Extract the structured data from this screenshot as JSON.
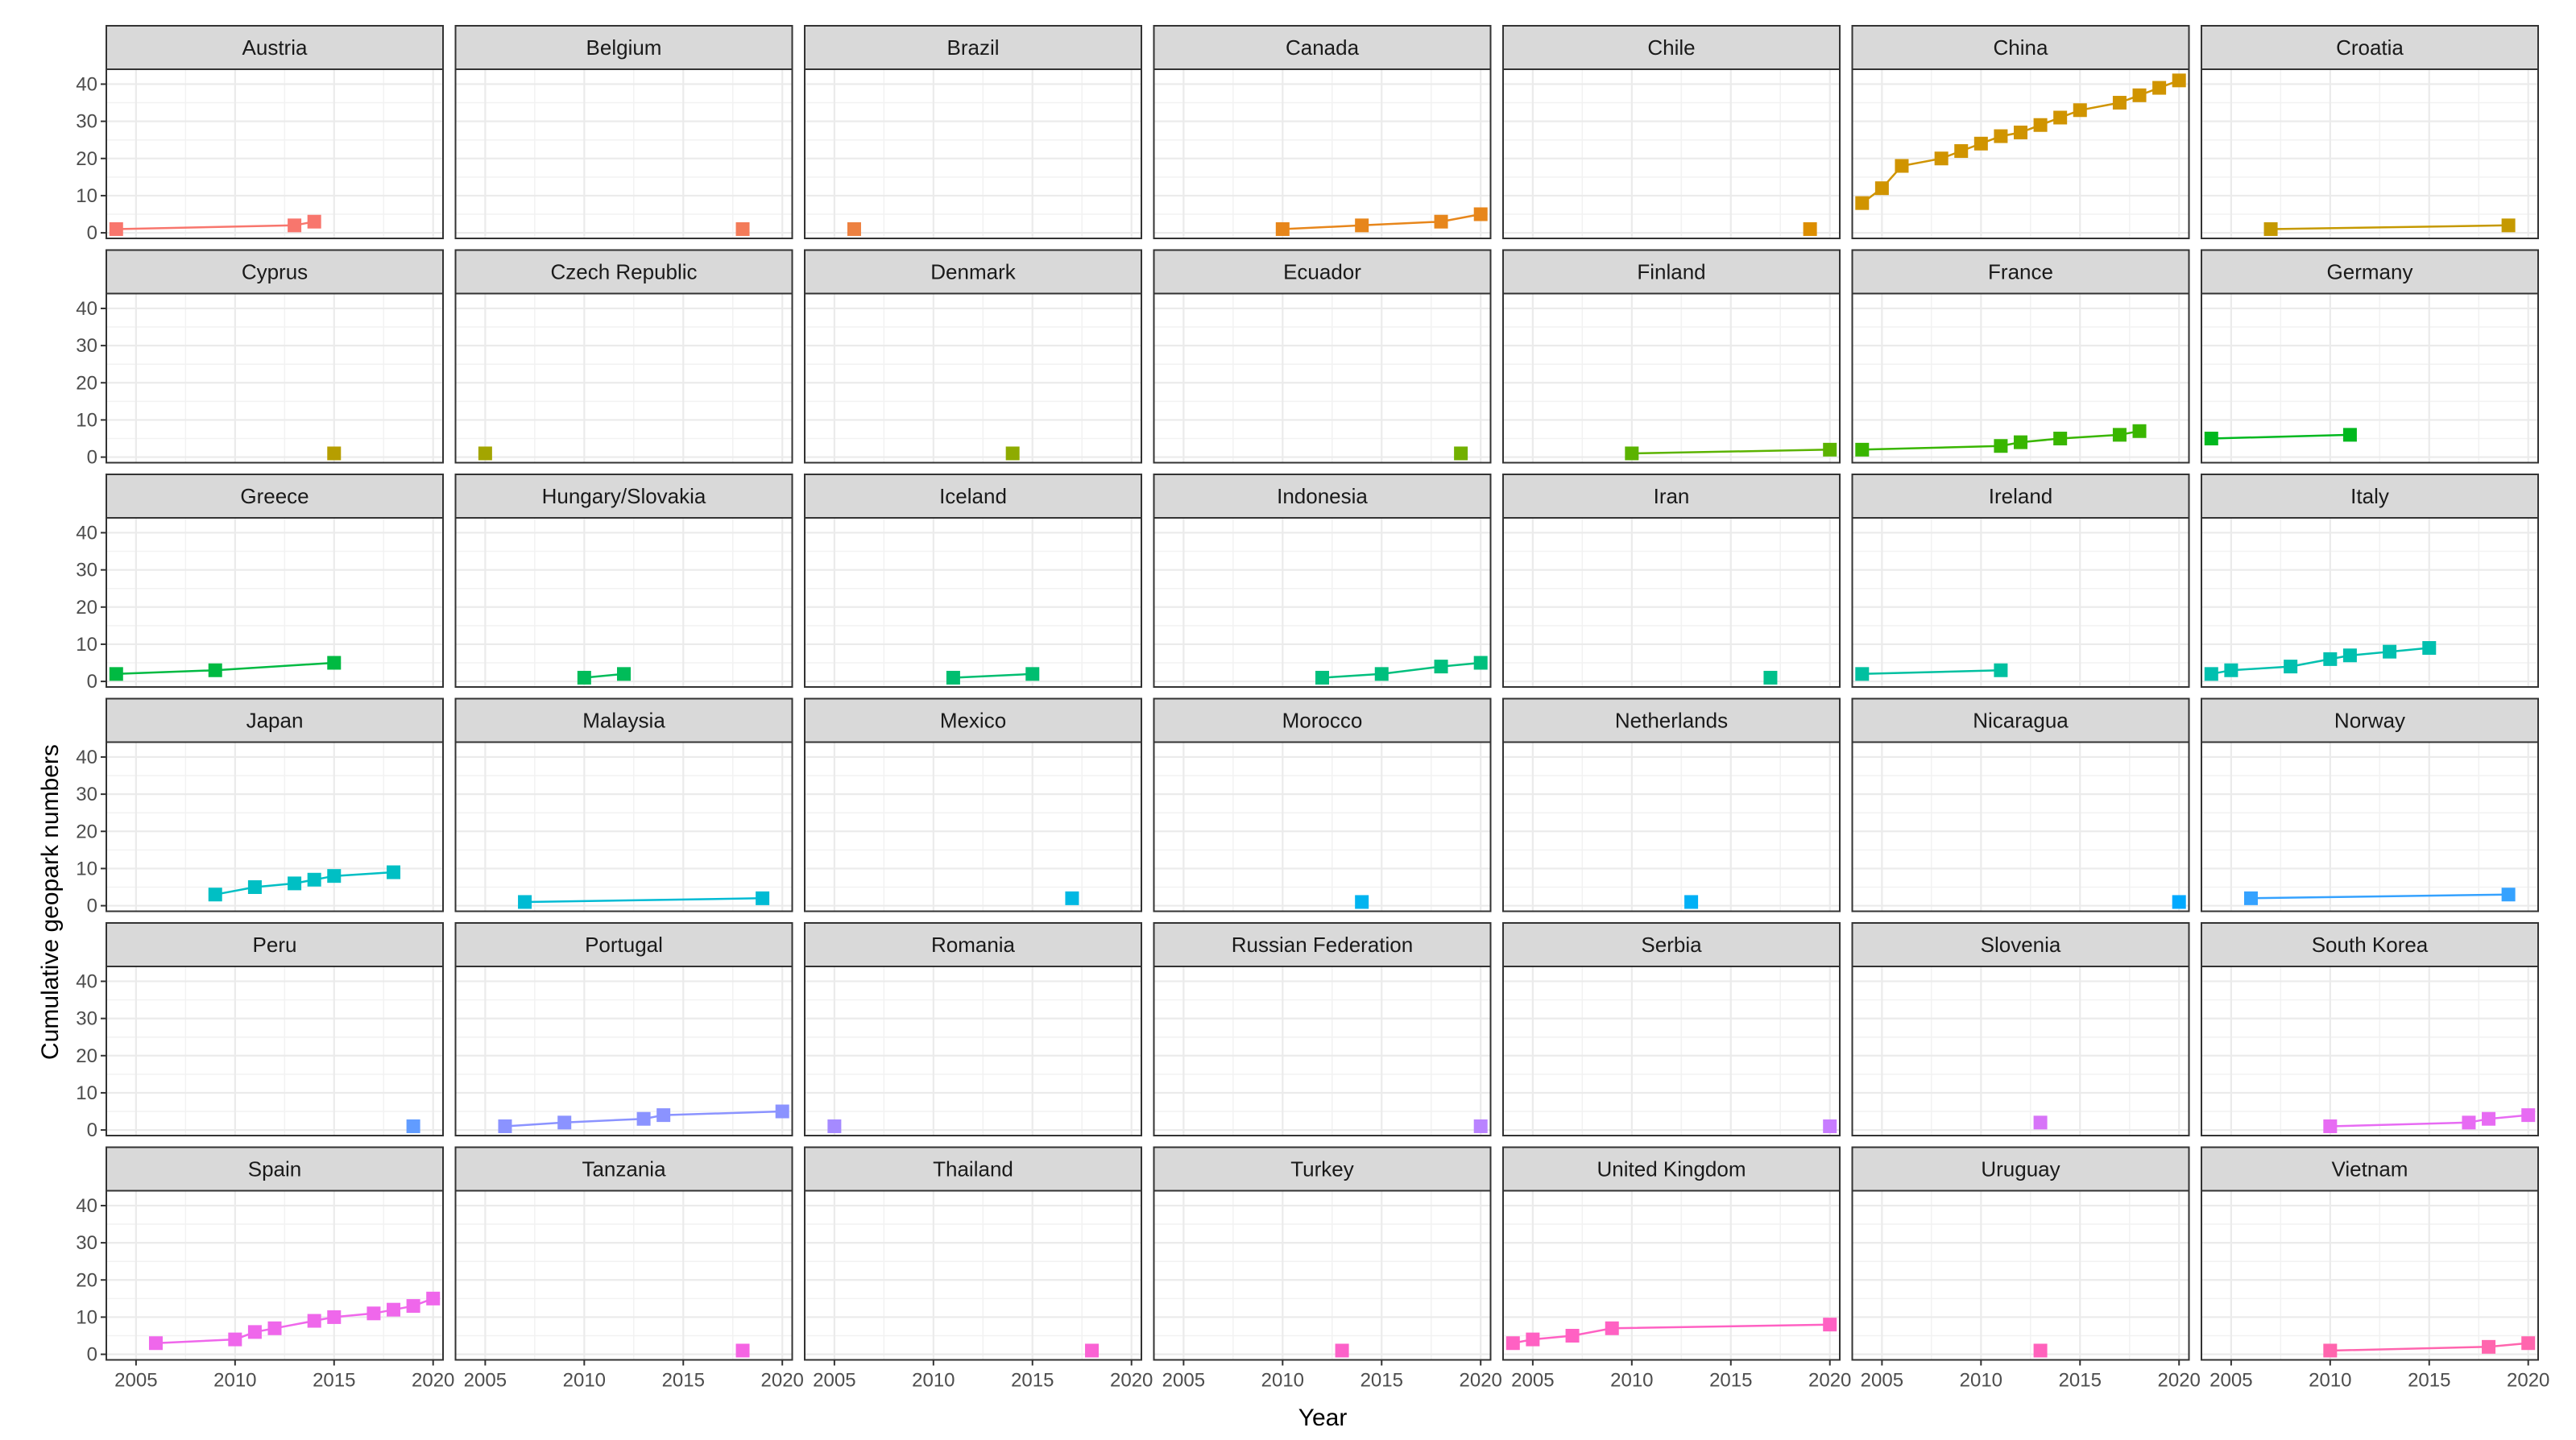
{
  "chart_data": {
    "type": "line",
    "facet": "small-multiples",
    "xlabel": "Year",
    "ylabel": "Cumulative geopark numbers",
    "xlim": [
      2003.5,
      2020.5
    ],
    "ylim": [
      -1.5,
      44
    ],
    "x_ticks": [
      2005,
      2010,
      2015,
      2020
    ],
    "x_tick_labels": [
      "2005",
      "2010",
      "2015",
      "2020"
    ],
    "y_ticks": [
      0,
      10,
      20,
      30,
      40
    ],
    "y_tick_labels": [
      "0",
      "10",
      "20",
      "30",
      "40"
    ],
    "grid": true,
    "panels": [
      {
        "country": "Austria",
        "color": "#F8766D",
        "points": [
          [
            2004,
            1
          ],
          [
            2013,
            2
          ],
          [
            2014,
            3
          ]
        ]
      },
      {
        "country": "Belgium",
        "color": "#F37B59",
        "points": [
          [
            2018,
            1
          ]
        ]
      },
      {
        "country": "Brazil",
        "color": "#ED8141",
        "points": [
          [
            2006,
            1
          ]
        ]
      },
      {
        "country": "Canada",
        "color": "#E7861B",
        "points": [
          [
            2010,
            1
          ],
          [
            2014,
            2
          ],
          [
            2018,
            3
          ],
          [
            2020,
            5
          ]
        ]
      },
      {
        "country": "Chile",
        "color": "#DC8E00",
        "points": [
          [
            2019,
            1
          ]
        ]
      },
      {
        "country": "China",
        "color": "#D09400",
        "points": [
          [
            2004,
            8
          ],
          [
            2005,
            12
          ],
          [
            2006,
            18
          ],
          [
            2008,
            20
          ],
          [
            2009,
            22
          ],
          [
            2010,
            24
          ],
          [
            2011,
            26
          ],
          [
            2012,
            27
          ],
          [
            2013,
            29
          ],
          [
            2014,
            31
          ],
          [
            2015,
            33
          ],
          [
            2017,
            35
          ],
          [
            2018,
            37
          ],
          [
            2019,
            39
          ],
          [
            2020,
            41
          ]
        ]
      },
      {
        "country": "Croatia",
        "color": "#C59900",
        "points": [
          [
            2007,
            1
          ],
          [
            2019,
            2
          ]
        ]
      },
      {
        "country": "Cyprus",
        "color": "#B69E00",
        "points": [
          [
            2015,
            1
          ]
        ]
      },
      {
        "country": "Czech Republic",
        "color": "#A3A500",
        "points": [
          [
            2005,
            1
          ]
        ]
      },
      {
        "country": "Denmark",
        "color": "#8EAB00",
        "points": [
          [
            2014,
            1
          ]
        ]
      },
      {
        "country": "Ecuador",
        "color": "#72B000",
        "points": [
          [
            2019,
            1
          ]
        ]
      },
      {
        "country": "Finland",
        "color": "#5BB300",
        "points": [
          [
            2010,
            1
          ],
          [
            2020,
            2
          ]
        ]
      },
      {
        "country": "France",
        "color": "#39B600",
        "points": [
          [
            2004,
            2
          ],
          [
            2011,
            3
          ],
          [
            2012,
            4
          ],
          [
            2014,
            5
          ],
          [
            2017,
            6
          ],
          [
            2018,
            7
          ]
        ]
      },
      {
        "country": "Germany",
        "color": "#00B81F",
        "points": [
          [
            2004,
            5
          ],
          [
            2011,
            6
          ]
        ]
      },
      {
        "country": "Greece",
        "color": "#00BA42",
        "points": [
          [
            2004,
            2
          ],
          [
            2009,
            3
          ],
          [
            2015,
            5
          ]
        ]
      },
      {
        "country": "Hungary/Slovakia",
        "color": "#00BC59",
        "points": [
          [
            2010,
            1
          ],
          [
            2012,
            2
          ]
        ]
      },
      {
        "country": "Iceland",
        "color": "#00BE70",
        "points": [
          [
            2011,
            1
          ],
          [
            2015,
            2
          ]
        ]
      },
      {
        "country": "Indonesia",
        "color": "#00BF7D",
        "points": [
          [
            2012,
            1
          ],
          [
            2015,
            2
          ],
          [
            2018,
            4
          ],
          [
            2020,
            5
          ]
        ]
      },
      {
        "country": "Iran",
        "color": "#00C08B",
        "points": [
          [
            2017,
            1
          ]
        ]
      },
      {
        "country": "Ireland",
        "color": "#00C0A0",
        "points": [
          [
            2004,
            2
          ],
          [
            2011,
            3
          ]
        ]
      },
      {
        "country": "Italy",
        "color": "#00C0AF",
        "points": [
          [
            2004,
            2
          ],
          [
            2005,
            3
          ],
          [
            2008,
            4
          ],
          [
            2010,
            6
          ],
          [
            2011,
            7
          ],
          [
            2013,
            8
          ],
          [
            2015,
            9
          ]
        ]
      },
      {
        "country": "Japan",
        "color": "#00BFC4",
        "points": [
          [
            2009,
            3
          ],
          [
            2011,
            5
          ],
          [
            2013,
            6
          ],
          [
            2014,
            7
          ],
          [
            2015,
            8
          ],
          [
            2018,
            9
          ]
        ]
      },
      {
        "country": "Malaysia",
        "color": "#00BBD4",
        "points": [
          [
            2007,
            1
          ],
          [
            2019,
            2
          ]
        ]
      },
      {
        "country": "Mexico",
        "color": "#00B8E3",
        "points": [
          [
            2017,
            2
          ]
        ]
      },
      {
        "country": "Morocco",
        "color": "#00B4F0",
        "points": [
          [
            2014,
            1
          ]
        ]
      },
      {
        "country": "Netherlands",
        "color": "#00B0F6",
        "points": [
          [
            2013,
            1
          ]
        ]
      },
      {
        "country": "Nicaragua",
        "color": "#00A9FF",
        "points": [
          [
            2020,
            1
          ]
        ]
      },
      {
        "country": "Norway",
        "color": "#35A2FF",
        "points": [
          [
            2006,
            2
          ],
          [
            2019,
            3
          ]
        ]
      },
      {
        "country": "Peru",
        "color": "#619CFF",
        "points": [
          [
            2019,
            1
          ]
        ]
      },
      {
        "country": "Portugal",
        "color": "#8B93FF",
        "points": [
          [
            2006,
            1
          ],
          [
            2009,
            2
          ],
          [
            2013,
            3
          ],
          [
            2014,
            4
          ],
          [
            2020,
            5
          ]
        ]
      },
      {
        "country": "Romania",
        "color": "#A58AFF",
        "points": [
          [
            2005,
            1
          ]
        ]
      },
      {
        "country": "Russian Federation",
        "color": "#B983FF",
        "points": [
          [
            2020,
            1
          ]
        ]
      },
      {
        "country": "Serbia",
        "color": "#C77CFF",
        "points": [
          [
            2020,
            1
          ]
        ]
      },
      {
        "country": "Slovenia",
        "color": "#D774F8",
        "points": [
          [
            2013,
            2
          ]
        ]
      },
      {
        "country": "South Korea",
        "color": "#E76BF3",
        "points": [
          [
            2010,
            1
          ],
          [
            2017,
            2
          ],
          [
            2018,
            3
          ],
          [
            2020,
            4
          ]
        ]
      },
      {
        "country": "Spain",
        "color": "#EF67EB",
        "points": [
          [
            2006,
            3
          ],
          [
            2010,
            4
          ],
          [
            2011,
            6
          ],
          [
            2012,
            7
          ],
          [
            2014,
            9
          ],
          [
            2015,
            10
          ],
          [
            2017,
            11
          ],
          [
            2018,
            12
          ],
          [
            2019,
            13
          ],
          [
            2020,
            15
          ]
        ]
      },
      {
        "country": "Tanzania",
        "color": "#F564E3",
        "points": [
          [
            2018,
            1
          ]
        ]
      },
      {
        "country": "Thailand",
        "color": "#FA62D4",
        "points": [
          [
            2018,
            1
          ]
        ]
      },
      {
        "country": "Turkey",
        "color": "#FC61C9",
        "points": [
          [
            2013,
            1
          ]
        ]
      },
      {
        "country": "United Kingdom",
        "color": "#FF61C3",
        "points": [
          [
            2004,
            3
          ],
          [
            2005,
            4
          ],
          [
            2007,
            5
          ],
          [
            2009,
            7
          ],
          [
            2020,
            8
          ]
        ]
      },
      {
        "country": "Uruguay",
        "color": "#FF62BC",
        "points": [
          [
            2013,
            1
          ]
        ]
      },
      {
        "country": "Vietnam",
        "color": "#FF65AE",
        "points": [
          [
            2010,
            1
          ],
          [
            2018,
            2
          ],
          [
            2020,
            3
          ]
        ]
      }
    ]
  }
}
